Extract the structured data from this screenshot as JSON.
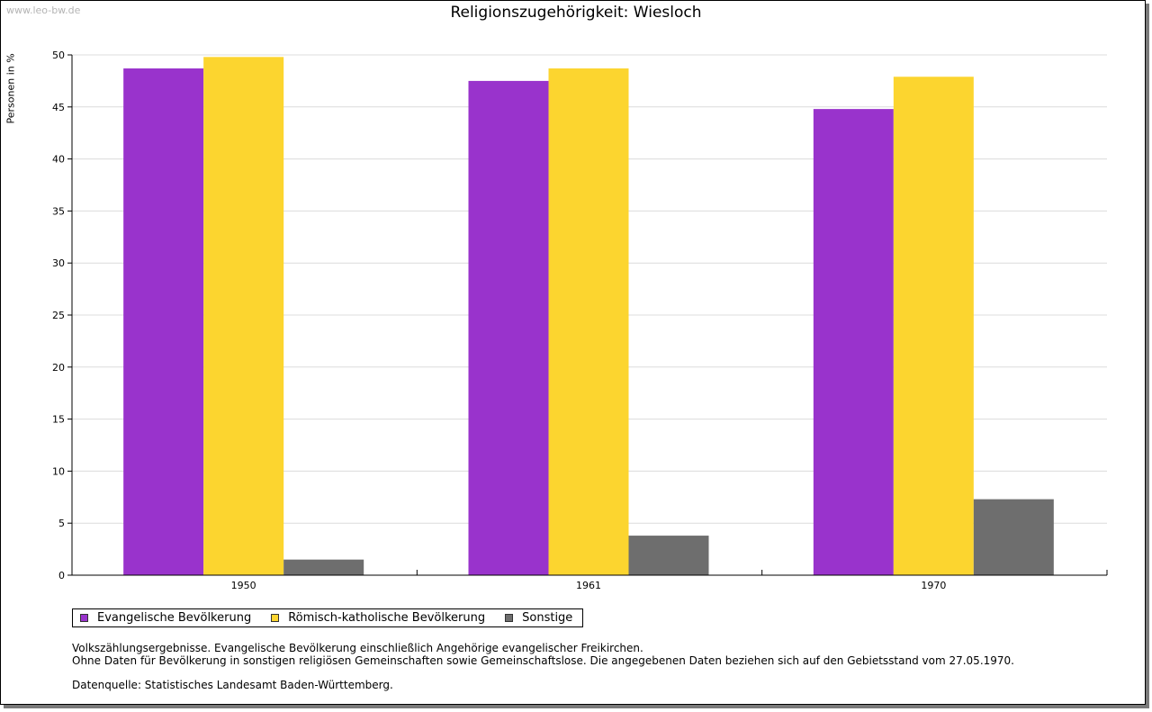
{
  "watermark": "www.leo-bw.de",
  "chart_data": {
    "type": "bar",
    "title": "Religionszugehörigkeit: Wiesloch",
    "xlabel": "",
    "ylabel": "Personen in %",
    "categories": [
      "1950",
      "1961",
      "1970"
    ],
    "series": [
      {
        "name": "Evangelische Bevölkerung",
        "color": "#9933cc",
        "values": [
          48.7,
          47.5,
          44.8
        ]
      },
      {
        "name": "Römisch-katholische Bevölkerung",
        "color": "#fcd52f",
        "values": [
          49.8,
          48.7,
          47.9
        ]
      },
      {
        "name": "Sonstige",
        "color": "#6e6e6e",
        "values": [
          1.5,
          3.8,
          7.3
        ]
      }
    ],
    "ylim": [
      0,
      50
    ],
    "yticks": [
      0,
      5,
      10,
      15,
      20,
      25,
      30,
      35,
      40,
      45,
      50
    ],
    "grid": true,
    "legend": "bottom-left"
  },
  "notes": {
    "line1": "Volkszählungsergebnisse. Evangelische Bevölkerung einschließlich Angehörige evangelischer Freikirchen.",
    "line2": "Ohne Daten für Bevölkerung in sonstigen religiösen Gemeinschaften sowie Gemeinschaftslose. Die angegebenen Daten beziehen sich auf den Gebietsstand vom 27.05.1970.",
    "source": "Datenquelle: Statistisches Landesamt Baden-Württemberg."
  }
}
